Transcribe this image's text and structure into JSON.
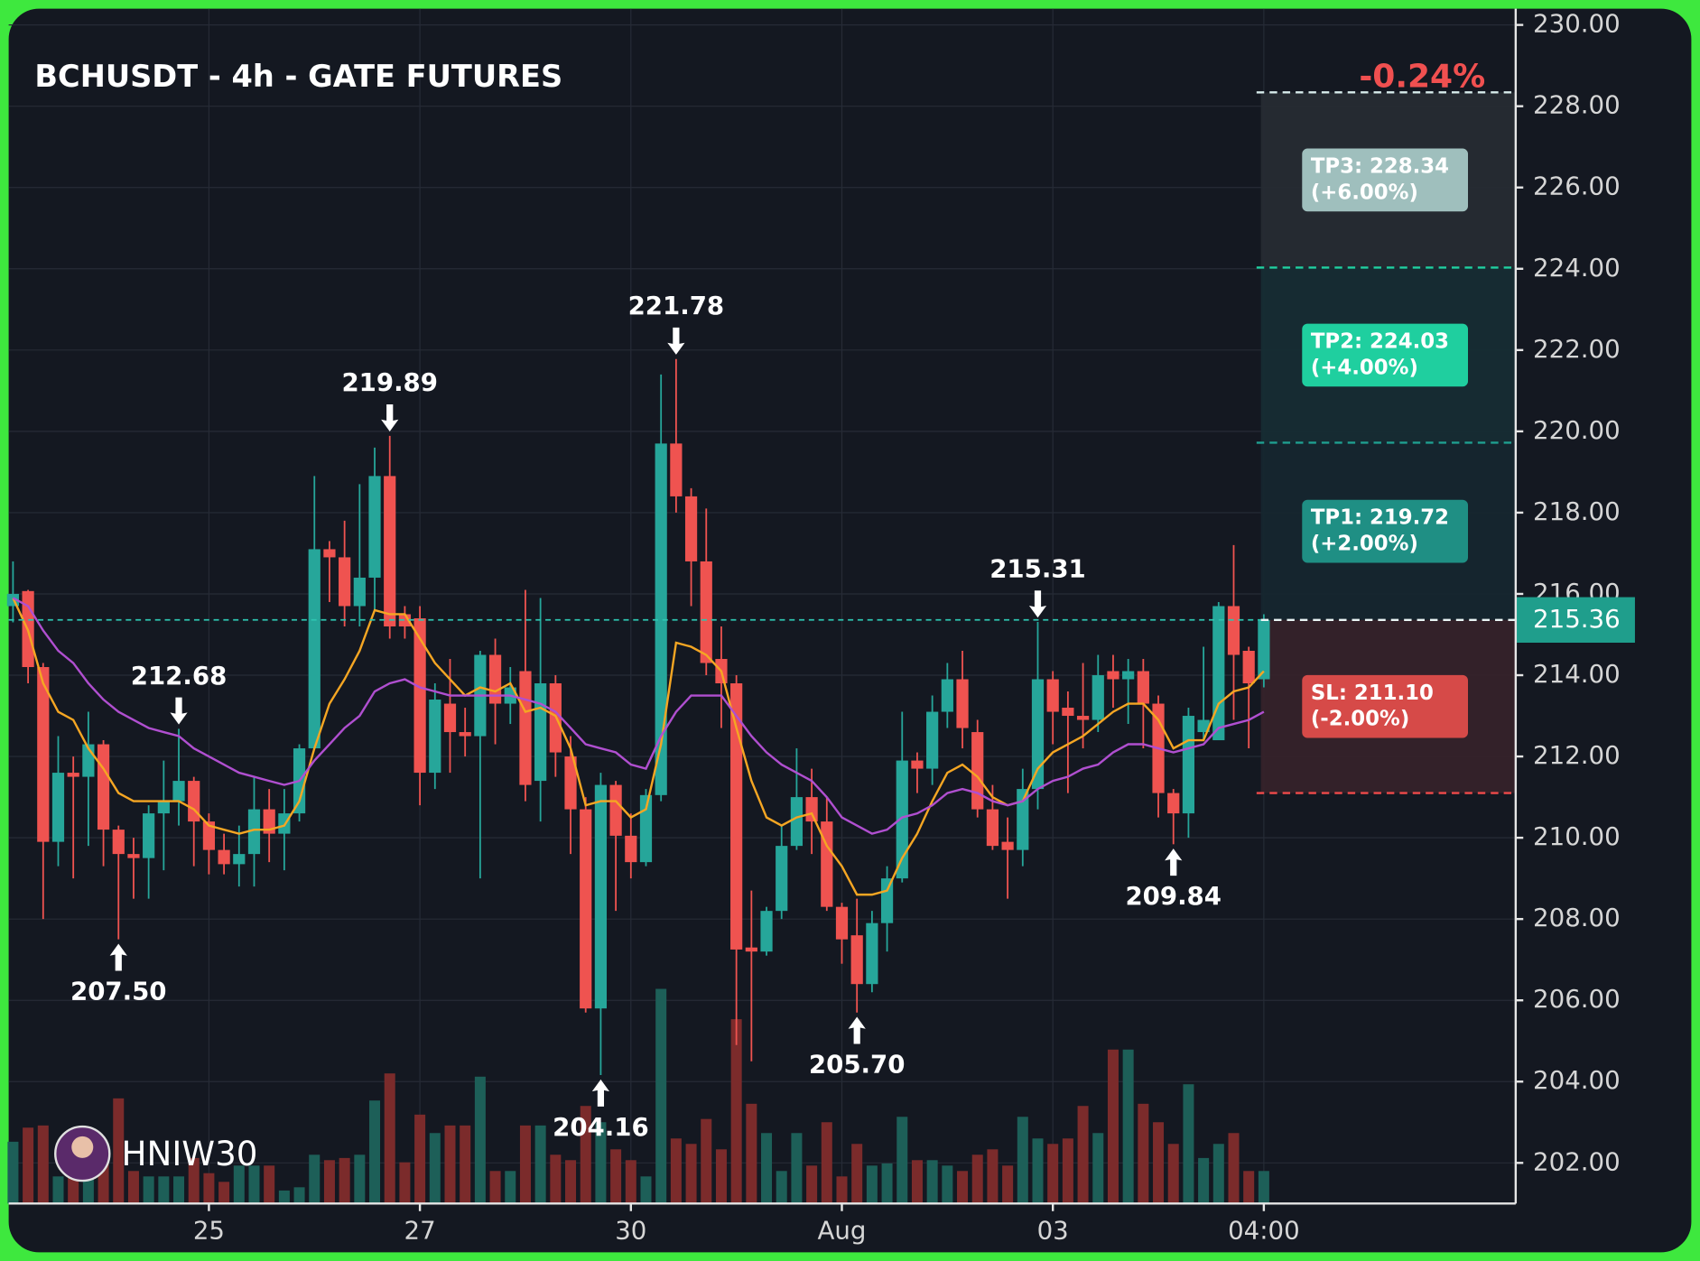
{
  "chart_data": {
    "type": "candlestick",
    "title": "BCHUSDT - 4h - GATE FUTURES",
    "change_label": "-0.24%",
    "watermark": "HNIW30",
    "categories": [
      null,
      null,
      null,
      null,
      null,
      null,
      null,
      null,
      null,
      null,
      null,
      null,
      null,
      "25",
      null,
      null,
      null,
      null,
      null,
      null,
      null,
      null,
      null,
      null,
      null,
      null,
      null,
      "27",
      null,
      null,
      null,
      null,
      null,
      null,
      null,
      null,
      null,
      null,
      null,
      null,
      null,
      "30",
      null,
      null,
      null,
      null,
      null,
      null,
      null,
      null,
      null,
      null,
      null,
      null,
      null,
      "Aug",
      null,
      null,
      null,
      null,
      null,
      null,
      null,
      null,
      null,
      null,
      null,
      null,
      null,
      "03",
      null,
      null,
      null,
      null,
      null,
      null,
      null,
      null,
      null,
      null,
      null,
      null,
      null,
      "04:00"
    ],
    "open": [
      215.7,
      216.07,
      214.2,
      209.9,
      211.6,
      211.5,
      212.3,
      210.2,
      209.6,
      209.5,
      210.6,
      210.9,
      211.4,
      210.4,
      209.7,
      209.35,
      209.6,
      210.7,
      210.1,
      210.6,
      212.2,
      217.1,
      216.9,
      215.7,
      216.4,
      218.9,
      215.5,
      215.4,
      211.6,
      213.3,
      212.6,
      212.5,
      214.5,
      213.3,
      214.1,
      211.4,
      213.8,
      212.0,
      210.7,
      205.8,
      211.3,
      210.05,
      209.4,
      211.05,
      219.7,
      218.4,
      216.8,
      214.4,
      213.8,
      207.3,
      207.2,
      208.2,
      209.8,
      211.0,
      210.4,
      208.3,
      207.6,
      206.4,
      207.9,
      209.0,
      211.9,
      211.7,
      213.1,
      213.9,
      212.6,
      210.7,
      209.9,
      209.7,
      211.2,
      213.9,
      213.2,
      213.0,
      212.9,
      214.1,
      213.9,
      214.1,
      213.3,
      211.1,
      210.6,
      212.6,
      212.4,
      215.7,
      214.6,
      213.9
    ],
    "high": [
      216.8,
      216.1,
      214.3,
      212.5,
      212.0,
      213.1,
      212.4,
      210.3,
      210.0,
      210.8,
      211.9,
      212.68,
      211.5,
      210.6,
      210.1,
      210.3,
      211.5,
      211.2,
      211.2,
      212.3,
      218.9,
      217.3,
      217.8,
      218.7,
      219.6,
      219.89,
      215.7,
      215.7,
      213.8,
      214.4,
      213.2,
      214.6,
      214.9,
      214.2,
      216.1,
      215.9,
      214.0,
      212.5,
      211.0,
      211.6,
      211.4,
      210.6,
      211.2,
      221.4,
      221.78,
      218.6,
      218.1,
      215.2,
      214.0,
      208.7,
      208.3,
      210.3,
      212.2,
      211.7,
      211.0,
      208.4,
      208.5,
      208.2,
      209.3,
      213.1,
      212.1,
      213.5,
      214.3,
      214.6,
      212.9,
      211.3,
      210.5,
      211.7,
      215.31,
      214.1,
      213.6,
      214.3,
      214.5,
      214.5,
      214.4,
      214.4,
      213.5,
      211.2,
      213.2,
      214.7,
      215.8,
      217.2,
      214.7,
      215.5
    ],
    "low": [
      215.3,
      213.8,
      208.0,
      209.3,
      209.0,
      209.8,
      209.3,
      207.5,
      208.5,
      208.5,
      209.2,
      210.3,
      209.3,
      209.1,
      209.1,
      208.8,
      208.8,
      209.4,
      209.2,
      210.4,
      212.2,
      215.8,
      215.2,
      215.2,
      215.6,
      214.9,
      214.9,
      210.8,
      211.2,
      211.6,
      212.0,
      209.0,
      212.3,
      212.8,
      210.9,
      210.4,
      211.5,
      209.6,
      205.7,
      204.16,
      208.2,
      209.0,
      209.3,
      210.9,
      218.0,
      215.7,
      214.0,
      212.7,
      204.9,
      204.5,
      207.1,
      208.0,
      209.7,
      209.6,
      208.2,
      206.9,
      205.7,
      206.2,
      207.2,
      208.9,
      211.1,
      211.3,
      212.7,
      212.2,
      210.5,
      209.7,
      208.5,
      209.3,
      210.7,
      212.3,
      211.1,
      212.2,
      212.6,
      213.2,
      212.8,
      212.2,
      210.5,
      209.84,
      210.0,
      212.4,
      212.5,
      212.9,
      212.2,
      213.7
    ],
    "close": [
      216.0,
      214.2,
      209.9,
      211.6,
      211.5,
      212.3,
      210.2,
      209.6,
      209.5,
      210.6,
      210.9,
      211.4,
      210.4,
      209.7,
      209.35,
      209.6,
      210.7,
      210.1,
      210.6,
      212.2,
      217.1,
      216.9,
      215.7,
      216.4,
      218.9,
      215.2,
      215.2,
      211.6,
      213.4,
      212.6,
      212.5,
      214.5,
      213.3,
      213.7,
      211.3,
      213.8,
      212.1,
      210.7,
      205.8,
      211.3,
      210.05,
      209.4,
      211.05,
      219.7,
      218.4,
      216.8,
      214.3,
      213.8,
      207.25,
      207.2,
      208.2,
      209.8,
      211.0,
      210.4,
      208.3,
      207.5,
      206.4,
      207.9,
      209.0,
      211.9,
      211.7,
      213.1,
      213.9,
      212.7,
      210.7,
      209.8,
      209.7,
      211.2,
      213.9,
      213.1,
      213.0,
      212.9,
      214.0,
      213.9,
      214.1,
      213.3,
      211.1,
      210.6,
      213.0,
      212.9,
      215.7,
      214.5,
      213.8,
      215.36
    ],
    "volume": [
      57,
      70,
      72,
      25,
      25,
      50,
      40,
      97,
      30,
      25,
      25,
      25,
      42,
      28,
      20,
      35,
      35,
      35,
      12,
      15,
      45,
      40,
      42,
      45,
      95,
      120,
      38,
      82,
      65,
      72,
      72,
      117,
      30,
      30,
      72,
      72,
      45,
      40,
      90,
      75,
      50,
      40,
      25,
      198,
      60,
      55,
      78,
      50,
      170,
      92,
      65,
      30,
      65,
      35,
      75,
      25,
      55,
      35,
      37,
      80,
      40,
      40,
      35,
      30,
      45,
      50,
      35,
      80,
      60,
      55,
      60,
      90,
      65,
      142,
      142,
      92,
      75,
      55,
      110,
      42,
      55,
      65,
      30,
      30
    ],
    "up_color": "#26a69a",
    "down_color": "#ef5350",
    "volume_up_color": "#1d5f58",
    "volume_down_color": "#7b2b2b",
    "ma_lines": [
      {
        "color": "#f5a623",
        "values": [
          215.9,
          215.1,
          213.8,
          213.1,
          212.9,
          212.2,
          211.7,
          211.1,
          210.9,
          210.9,
          210.9,
          210.9,
          210.7,
          210.3,
          210.2,
          210.1,
          210.2,
          210.2,
          210.3,
          210.9,
          212.2,
          213.3,
          213.9,
          214.6,
          215.6,
          215.5,
          215.5,
          214.9,
          214.3,
          213.9,
          213.5,
          213.7,
          213.6,
          213.8,
          213.1,
          213.2,
          213.0,
          212.2,
          210.8,
          210.9,
          210.9,
          210.5,
          210.7,
          212.3,
          214.8,
          214.7,
          214.5,
          214.1,
          212.7,
          211.4,
          210.5,
          210.3,
          210.5,
          210.6,
          209.8,
          209.3,
          208.6,
          208.6,
          208.7,
          209.5,
          210.1,
          210.9,
          211.6,
          211.8,
          211.5,
          211.0,
          210.8,
          210.9,
          211.7,
          212.1,
          212.3,
          212.5,
          212.8,
          213.1,
          213.3,
          213.3,
          212.9,
          212.2,
          212.4,
          212.4,
          213.3,
          213.6,
          213.7,
          214.1
        ]
      },
      {
        "color": "#b04fd0",
        "values": [
          215.9,
          215.7,
          215.1,
          214.6,
          214.3,
          213.8,
          213.4,
          213.1,
          212.9,
          212.7,
          212.6,
          212.5,
          212.2,
          212.0,
          211.8,
          211.6,
          211.5,
          211.4,
          211.3,
          211.4,
          211.9,
          212.3,
          212.7,
          213.0,
          213.6,
          213.8,
          213.9,
          213.7,
          213.6,
          213.5,
          213.5,
          213.5,
          213.5,
          213.5,
          213.4,
          213.3,
          213.1,
          212.7,
          212.3,
          212.2,
          212.1,
          211.8,
          211.7,
          212.5,
          213.1,
          213.5,
          213.5,
          213.5,
          213.0,
          212.5,
          212.1,
          211.8,
          211.6,
          211.4,
          211.0,
          210.5,
          210.3,
          210.1,
          210.2,
          210.5,
          210.6,
          210.8,
          211.1,
          211.2,
          211.1,
          210.9,
          210.8,
          210.9,
          211.2,
          211.4,
          211.5,
          211.7,
          211.8,
          212.1,
          212.3,
          212.3,
          212.2,
          212.1,
          212.2,
          212.3,
          212.7,
          212.8,
          212.9,
          213.1
        ]
      }
    ],
    "ylim": [
      201,
      230.4
    ],
    "yticks": [
      {
        "value": 202,
        "label": "202.00"
      },
      {
        "value": 204,
        "label": "204.00"
      },
      {
        "value": 206,
        "label": "206.00"
      },
      {
        "value": 208,
        "label": "208.00"
      },
      {
        "value": 210,
        "label": "210.00"
      },
      {
        "value": 212,
        "label": "212.00"
      },
      {
        "value": 214,
        "label": "214.00"
      },
      {
        "value": 216,
        "label": "216.00"
      },
      {
        "value": 218,
        "label": "218.00"
      },
      {
        "value": 220,
        "label": "220.00"
      },
      {
        "value": 222,
        "label": "222.00"
      },
      {
        "value": 224,
        "label": "224.00"
      },
      {
        "value": 226,
        "label": "226.00"
      },
      {
        "value": 228,
        "label": "228.00"
      },
      {
        "value": 230,
        "label": "230.00"
      }
    ],
    "grid": true,
    "last_price": 215.36,
    "swing_highs": [
      {
        "index": 11,
        "value": 212.68,
        "label": "212.68"
      },
      {
        "index": 25,
        "value": 219.89,
        "label": "219.89"
      },
      {
        "index": 44,
        "value": 221.78,
        "label": "221.78"
      },
      {
        "index": 68,
        "value": 215.31,
        "label": "215.31"
      }
    ],
    "swing_lows": [
      {
        "index": 7,
        "value": 207.5,
        "label": "207.50"
      },
      {
        "index": 39,
        "value": 204.16,
        "label": "204.16"
      },
      {
        "index": 56,
        "value": 205.7,
        "label": "205.70"
      },
      {
        "index": 77,
        "value": 209.84,
        "label": "209.84"
      }
    ],
    "levels": [
      {
        "value": 219.72,
        "label": "TP1: 219.72",
        "sub": "(+2.00%)",
        "color": "#1f8f84",
        "line_color": "#1f9f90",
        "zone_color": "#15262f"
      },
      {
        "value": 224.03,
        "label": "TP2: 224.03",
        "sub": "(+4.00%)",
        "color": "#1fcf9f",
        "line_color": "#20d0a0",
        "zone_color": "#162c34"
      },
      {
        "value": 228.34,
        "label": "TP3: 228.34",
        "sub": "(+6.00%)",
        "color": "#9fbfbd",
        "line_color": "#d8ecec",
        "zone_color": "#262b33"
      },
      {
        "value": 211.1,
        "label": "SL: 211.10",
        "sub": "(-2.00%)",
        "color": "#d64a48",
        "line_color": "#f04a4a",
        "zone_color": "#35222a"
      }
    ]
  }
}
